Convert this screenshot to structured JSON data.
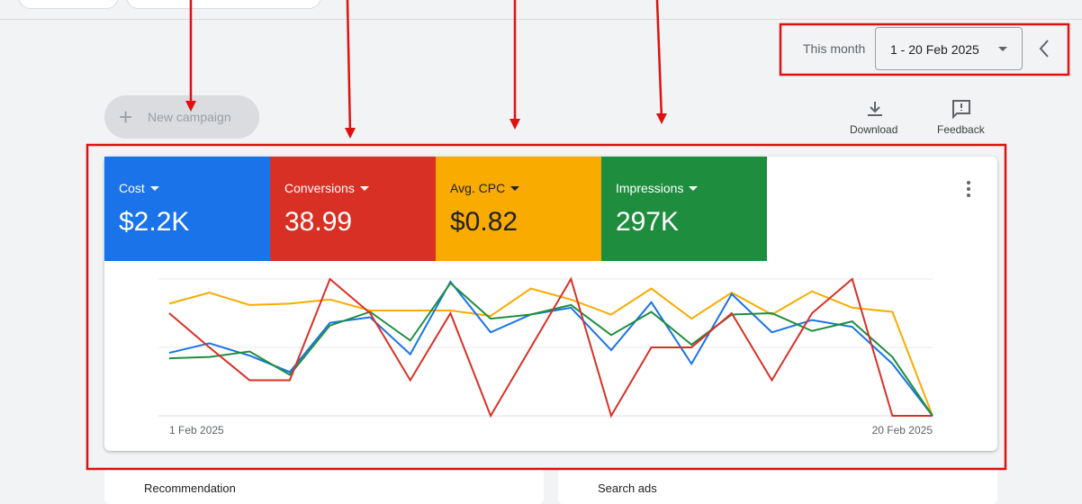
{
  "toolbar": {
    "range_label": "This month",
    "date_range": "1 - 20 Feb 2025"
  },
  "actions": {
    "new_campaign": "New campaign",
    "download": "Download",
    "feedback": "Feedback"
  },
  "metrics": [
    {
      "label": "Cost",
      "value": "$2.2K",
      "color": "#1a73e8"
    },
    {
      "label": "Conversions",
      "value": "38.99",
      "color": "#d93025"
    },
    {
      "label": "Avg. CPC",
      "value": "$0.82",
      "color": "#f9ab00"
    },
    {
      "label": "Impressions",
      "value": "297K",
      "color": "#1e8e3e"
    }
  ],
  "chart_data": {
    "type": "line",
    "ylim": [
      0,
      100
    ],
    "categories": [
      "1 Feb 2025",
      null,
      null,
      null,
      null,
      null,
      null,
      null,
      null,
      null,
      null,
      null,
      null,
      null,
      null,
      null,
      null,
      null,
      null,
      "20 Feb 2025"
    ],
    "series": [
      {
        "name": "Avg. CPC",
        "color": "#f9ab00",
        "values": [
          82,
          90,
          81,
          82,
          85,
          77,
          77,
          77,
          73,
          93,
          85,
          74,
          93,
          71,
          90,
          74,
          91,
          79,
          76,
          0
        ]
      },
      {
        "name": "Cost",
        "color": "#1a73e8",
        "values": [
          46,
          53,
          44,
          32,
          68,
          72,
          45,
          98,
          61,
          74,
          79,
          48,
          83,
          38,
          89,
          61,
          70,
          65,
          38,
          0
        ]
      },
      {
        "name": "Impressions",
        "color": "#1e8e3e",
        "values": [
          42,
          43,
          47,
          30,
          66,
          76,
          55,
          97,
          71,
          74,
          81,
          59,
          76,
          52,
          74,
          75,
          62,
          69,
          43,
          0
        ]
      },
      {
        "name": "Conversions",
        "color": "#d93025",
        "values": [
          75,
          50,
          26,
          26,
          100,
          75,
          26,
          75,
          0,
          50,
          100,
          0,
          50,
          50,
          75,
          26,
          75,
          100,
          0,
          0
        ]
      }
    ]
  },
  "cards": [
    "Recommendation",
    "Search ads"
  ]
}
